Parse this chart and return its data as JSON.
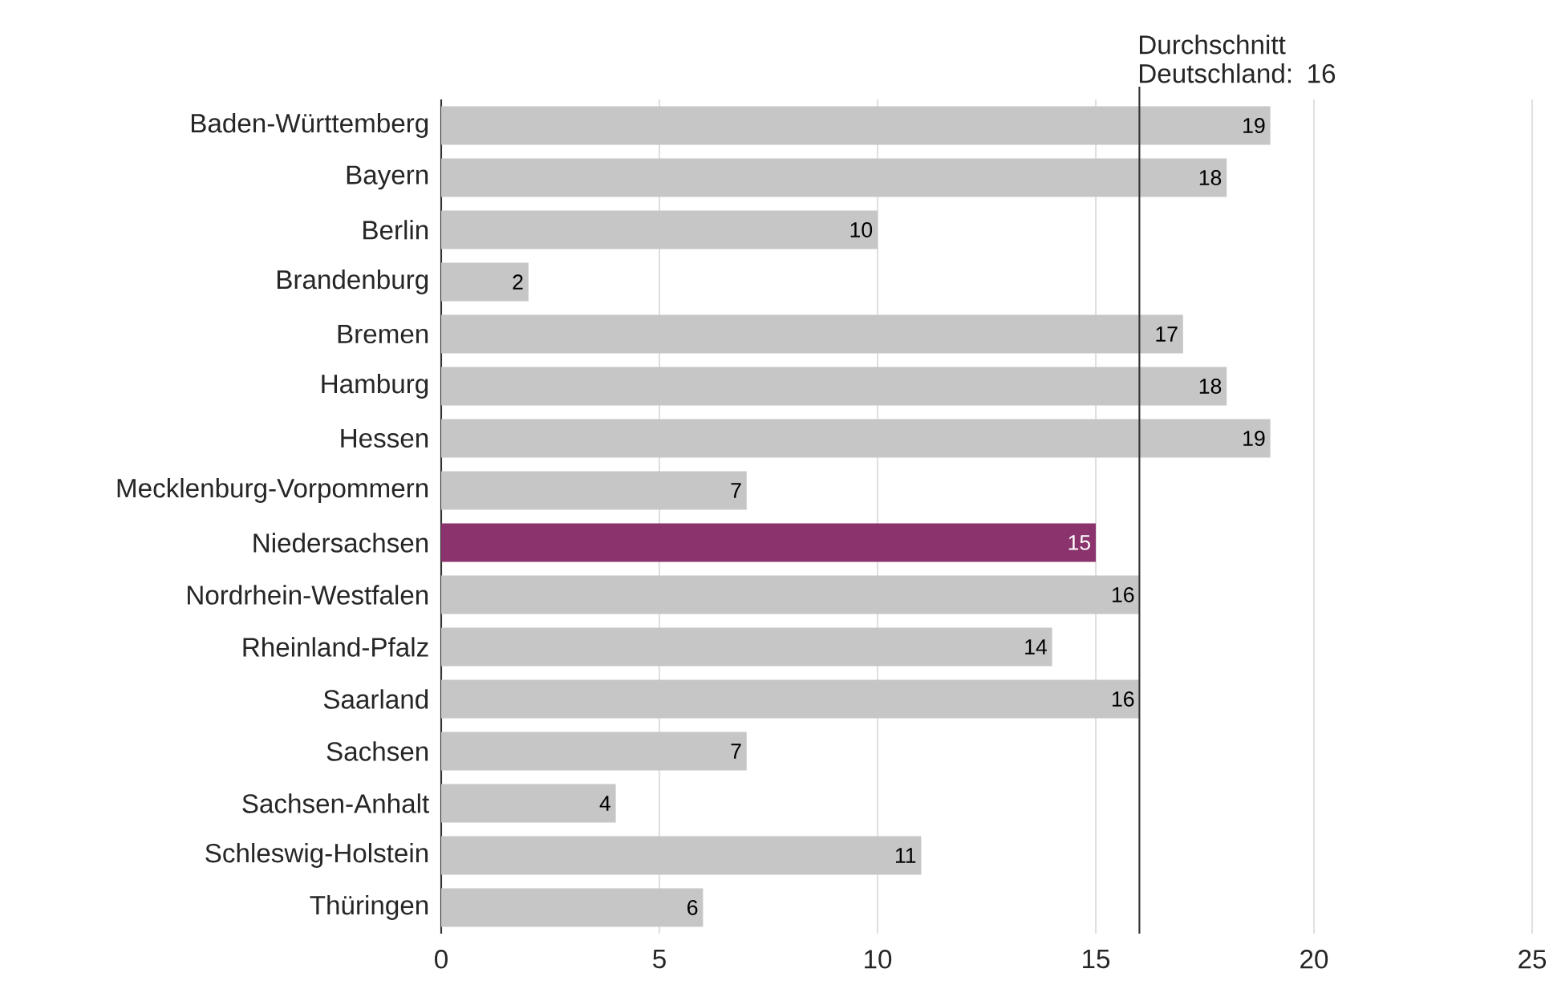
{
  "chart_data": {
    "type": "bar",
    "orientation": "horizontal",
    "categories": [
      "Baden-Württemberg",
      "Bayern",
      "Berlin",
      "Brandenburg",
      "Bremen",
      "Hamburg",
      "Hessen",
      "Mecklenburg-Vorpommern",
      "Niedersachsen",
      "Nordrhein-Westfalen",
      "Rheinland-Pfalz",
      "Saarland",
      "Sachsen",
      "Sachsen-Anhalt",
      "Schleswig-Holstein",
      "Thüringen"
    ],
    "values": [
      19,
      18,
      10,
      2,
      17,
      18,
      19,
      7,
      15,
      16,
      14,
      16,
      7,
      4,
      11,
      6
    ],
    "colors": [
      "#c6c6c6",
      "#c6c6c6",
      "#c6c6c6",
      "#c6c6c6",
      "#c6c6c6",
      "#c6c6c6",
      "#c6c6c6",
      "#c6c6c6",
      "#8b336c",
      "#c6c6c6",
      "#c6c6c6",
      "#c6c6c6",
      "#c6c6c6",
      "#c6c6c6",
      "#c6c6c6",
      "#c6c6c6"
    ],
    "xlim": [
      0,
      25
    ],
    "xticks": [
      0,
      5,
      10,
      15,
      20,
      25
    ],
    "grid": "x",
    "data_labels": true,
    "ref_lines": [
      {
        "axis": "x",
        "value": 16,
        "label": "Durchschnitt Deutschland: 16",
        "color": "#333333"
      }
    ]
  }
}
